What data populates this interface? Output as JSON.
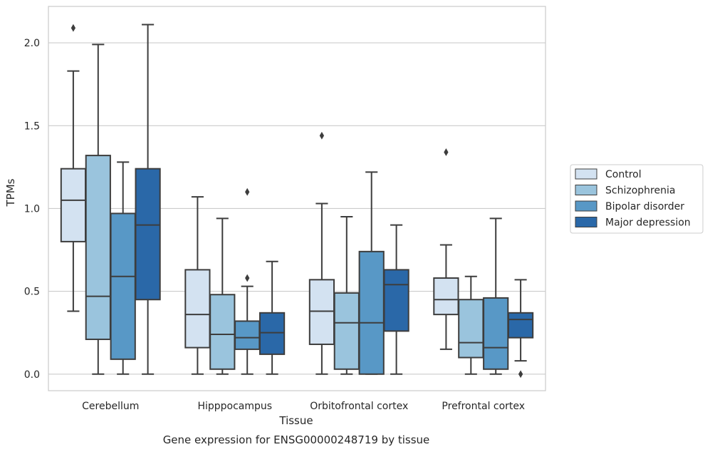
{
  "chart_data": {
    "type": "box",
    "xlabel": "Tissue",
    "ylabel": "TPMs",
    "caption": "Gene expression for ENSG00000248719 by tissue",
    "ylim": [
      -0.1,
      2.22
    ],
    "yticks": [
      0.0,
      0.5,
      1.0,
      1.5,
      2.0
    ],
    "ytick_labels": [
      "0.0",
      "0.5",
      "1.0",
      "1.5",
      "2.0"
    ],
    "grid": "horizontal",
    "legend_position": "right",
    "categories": [
      "Cerebellum",
      "Hipppocampus",
      "Orbitofrontal cortex",
      "Prefrontal cortex"
    ],
    "series": [
      {
        "name": "Control",
        "color": "#d3e2f1",
        "boxes": [
          {
            "min": 0.38,
            "q1": 0.8,
            "median": 1.05,
            "q3": 1.24,
            "max": 1.83,
            "outliers": [
              2.09
            ]
          },
          {
            "min": 0.0,
            "q1": 0.16,
            "median": 0.36,
            "q3": 0.63,
            "max": 1.07,
            "outliers": []
          },
          {
            "min": 0.0,
            "q1": 0.18,
            "median": 0.38,
            "q3": 0.57,
            "max": 1.03,
            "outliers": [
              1.44
            ]
          },
          {
            "min": 0.15,
            "q1": 0.36,
            "median": 0.45,
            "q3": 0.58,
            "max": 0.78,
            "outliers": [
              1.34
            ]
          }
        ]
      },
      {
        "name": "Schizophrenia",
        "color": "#9ac4dd",
        "boxes": [
          {
            "min": 0.0,
            "q1": 0.21,
            "median": 0.47,
            "q3": 1.32,
            "max": 1.99,
            "outliers": []
          },
          {
            "min": 0.0,
            "q1": 0.03,
            "median": 0.24,
            "q3": 0.48,
            "max": 0.94,
            "outliers": []
          },
          {
            "min": 0.0,
            "q1": 0.03,
            "median": 0.31,
            "q3": 0.49,
            "max": 0.95,
            "outliers": []
          },
          {
            "min": 0.0,
            "q1": 0.1,
            "median": 0.19,
            "q3": 0.45,
            "max": 0.59,
            "outliers": []
          }
        ]
      },
      {
        "name": "Bipolar disorder",
        "color": "#5898c6",
        "boxes": [
          {
            "min": 0.0,
            "q1": 0.09,
            "median": 0.59,
            "q3": 0.97,
            "max": 1.28,
            "outliers": []
          },
          {
            "min": 0.0,
            "q1": 0.15,
            "median": 0.22,
            "q3": 0.32,
            "max": 0.53,
            "outliers": [
              0.58,
              1.1
            ]
          },
          {
            "min": 0.0,
            "q1": 0.0,
            "median": 0.31,
            "q3": 0.74,
            "max": 1.22,
            "outliers": []
          },
          {
            "min": 0.0,
            "q1": 0.03,
            "median": 0.16,
            "q3": 0.46,
            "max": 0.94,
            "outliers": []
          }
        ]
      },
      {
        "name": "Major depression",
        "color": "#2a68a8",
        "boxes": [
          {
            "min": 0.0,
            "q1": 0.45,
            "median": 0.9,
            "q3": 1.24,
            "max": 2.11,
            "outliers": []
          },
          {
            "min": 0.0,
            "q1": 0.12,
            "median": 0.25,
            "q3": 0.37,
            "max": 0.68,
            "outliers": []
          },
          {
            "min": 0.0,
            "q1": 0.26,
            "median": 0.54,
            "q3": 0.63,
            "max": 0.9,
            "outliers": []
          },
          {
            "min": 0.08,
            "q1": 0.22,
            "median": 0.33,
            "q3": 0.37,
            "max": 0.57,
            "outliers": [
              0.0
            ]
          }
        ]
      }
    ]
  }
}
